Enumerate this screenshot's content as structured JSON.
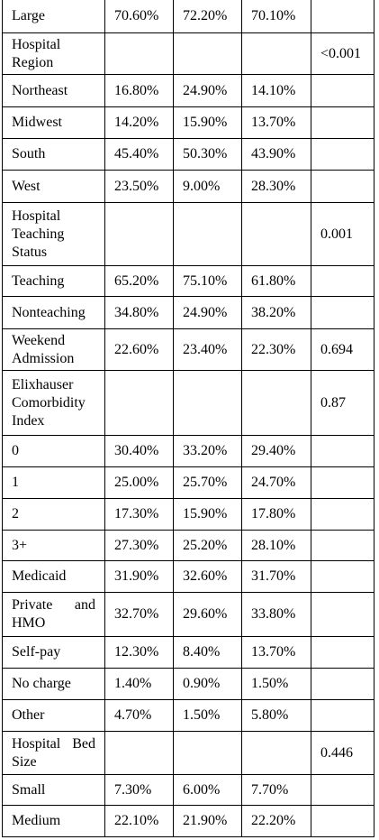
{
  "table": {
    "rows": [
      [
        "Large",
        "70.60%",
        "72.20%",
        "70.10%",
        null
      ],
      [
        "Hospital Region",
        null,
        null,
        null,
        "<0.001"
      ],
      [
        "Northeast",
        "16.80%",
        "24.90%",
        "14.10%",
        null
      ],
      [
        "Midwest",
        "14.20%",
        "15.90%",
        "13.70%",
        null
      ],
      [
        "South",
        "45.40%",
        "50.30%",
        "43.90%",
        null
      ],
      [
        "West",
        "23.50%",
        "9.00%",
        "28.30%",
        null
      ],
      [
        "Hospital Teaching Status",
        null,
        null,
        null,
        "0.001"
      ],
      [
        "Teaching",
        "65.20%",
        "75.10%",
        "61.80%",
        null
      ],
      [
        "Nonteaching",
        "34.80%",
        "24.90%",
        "38.20%",
        null
      ],
      [
        "Weekend Admission",
        "22.60%",
        "23.40%",
        "22.30%",
        "0.694"
      ],
      [
        "Elixhauser Comorbidity Index",
        null,
        null,
        null,
        "0.87"
      ],
      [
        "0",
        "30.40%",
        "33.20%",
        "29.40%",
        null
      ],
      [
        "1",
        "25.00%",
        "25.70%",
        "24.70%",
        null
      ],
      [
        "2",
        "17.30%",
        "15.90%",
        "17.80%",
        null
      ],
      [
        "3+",
        "27.30%",
        "25.20%",
        "28.10%",
        null
      ],
      [
        "Medicaid",
        "31.90%",
        "32.60%",
        "31.70%",
        null
      ],
      [
        "Private and HMO",
        "32.70%",
        "29.60%",
        "33.80%",
        null
      ],
      [
        "Self-pay",
        "12.30%",
        "8.40%",
        "13.70%",
        null
      ],
      [
        "No charge",
        "1.40%",
        "0.90%",
        "1.50%",
        null
      ],
      [
        "Other",
        "4.70%",
        "1.50%",
        "5.80%",
        null
      ],
      [
        "Hospital Bed Size",
        null,
        null,
        null,
        "0.446"
      ],
      [
        "Small",
        "7.30%",
        "6.00%",
        "7.70%",
        null
      ],
      [
        "Medium",
        "22.10%",
        "21.90%",
        "22.20%",
        null
      ]
    ]
  }
}
